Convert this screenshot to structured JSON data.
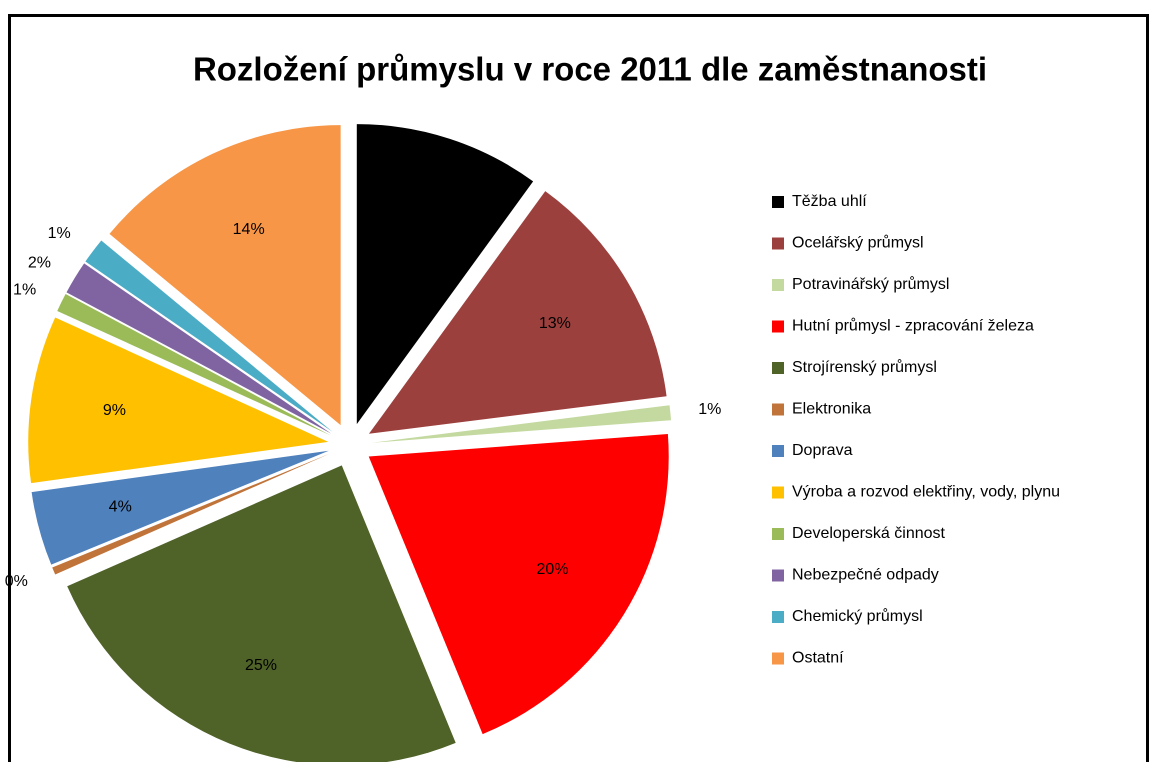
{
  "chart_data": {
    "type": "pie",
    "title": "Rozložení průmyslu v roce 2011 dle zaměstnanosti",
    "categories": [
      "Těžba uhlí",
      "Ocelářský průmysl",
      "Potravinářský průmysl",
      "Hutní průmysl - zpracování železa",
      "Strojírenský průmysl",
      "Elektronika",
      "Doprava",
      "Výroba a rozvod elektřiny, vody, plynu",
      "Developerská činnost",
      "Nebezpečné odpady",
      "Chemický průmysl",
      "Ostatní"
    ],
    "values": [
      10,
      13,
      0.8,
      20,
      24.6,
      0.4,
      4,
      9,
      1,
      1.8,
      1.4,
      14
    ],
    "value_labels": [
      "10%",
      "13%",
      "1%",
      "20%",
      "25%",
      "0%",
      "4%",
      "9%",
      "1%",
      "2%",
      "1%",
      "14%"
    ],
    "colors": [
      "#000000",
      "#9c403e",
      "#c4d9a0",
      "#ff0000",
      "#4f6228",
      "#c0743a",
      "#4f81bd",
      "#ffc000",
      "#9bbb59",
      "#8064a2",
      "#4bacc6",
      "#f79646"
    ],
    "legend": "right"
  }
}
